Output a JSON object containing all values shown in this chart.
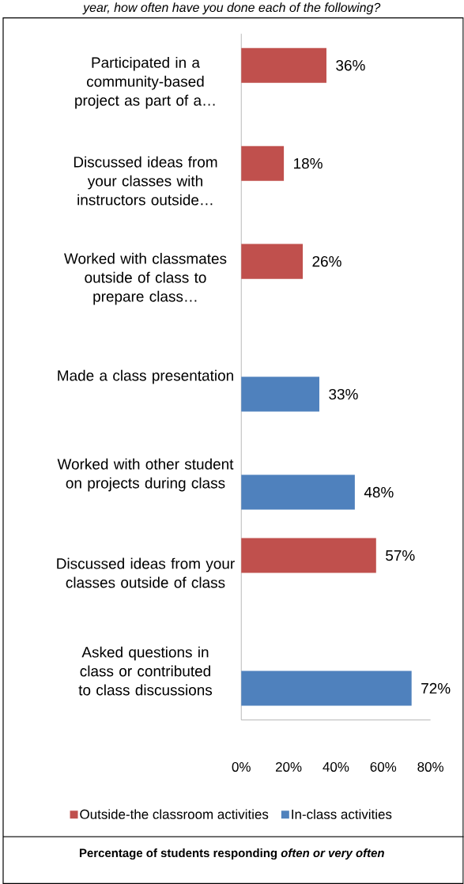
{
  "chart_data": {
    "type": "bar",
    "orientation": "horizontal",
    "title": "year, how often have you done each of the following?",
    "categories": [
      "Participated in a community-based project as part of a…",
      "Discussed ideas from your classes with instructors outside…",
      "Worked with classmates outside of class to prepare class…",
      "Made a class presentation",
      "Worked with other student on projects during class",
      "Discussed ideas from your classes outside of class",
      "Asked questions in class or contributed to class discussions"
    ],
    "series": [
      {
        "name": "Outside-the classroom activities",
        "color": "#c0504d",
        "values": [
          36,
          18,
          26,
          null,
          null,
          57,
          null
        ],
        "value_labels": [
          "36%",
          "18%",
          "26%",
          null,
          null,
          "57%",
          null
        ]
      },
      {
        "name": "In-class activities",
        "color": "#4f81bd",
        "values": [
          null,
          null,
          null,
          33,
          48,
          null,
          72
        ],
        "value_labels": [
          null,
          null,
          null,
          "33%",
          "48%",
          null,
          "72%"
        ]
      }
    ],
    "xlim": [
      0,
      80
    ],
    "xticks": [
      {
        "value": 0,
        "label": "0%"
      },
      {
        "value": 20,
        "label": "20%"
      },
      {
        "value": 40,
        "label": "40%"
      },
      {
        "value": 60,
        "label": "60%"
      },
      {
        "value": 80,
        "label": "80%"
      }
    ],
    "legend": "bottom",
    "annotations": [
      "Percentage of students responding *often or very often*"
    ]
  }
}
